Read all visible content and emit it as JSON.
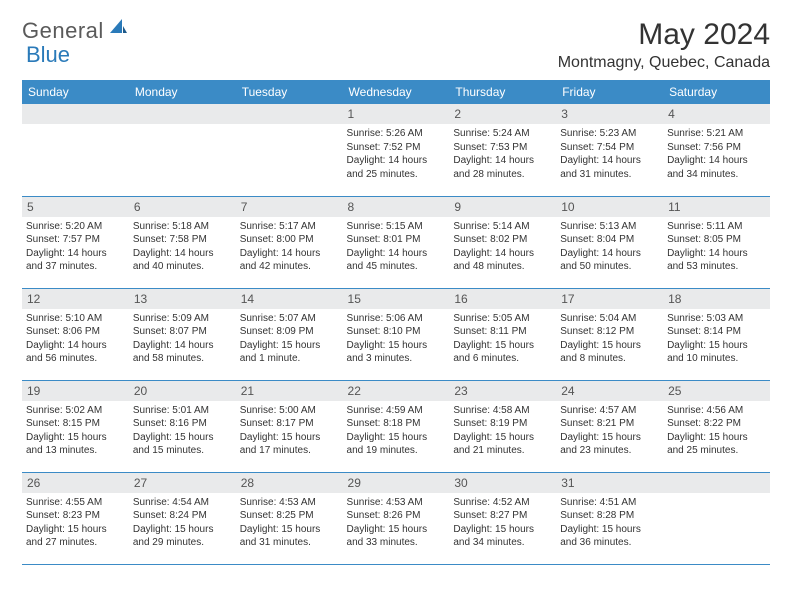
{
  "branding": {
    "logo_text_1": "General",
    "logo_text_2": "Blue",
    "logo_color_gray": "#5a5a5a",
    "logo_color_blue": "#2a7ab9"
  },
  "header": {
    "month_title": "May 2024",
    "location": "Montmagny, Quebec, Canada"
  },
  "styling": {
    "header_bg": "#3b8bc6",
    "header_text": "#ffffff",
    "daynum_bg": "#e9eaeb",
    "row_border": "#3b8bc6",
    "body_font_size": 10,
    "header_font_size": 12,
    "title_font_size": 30,
    "location_font_size": 16
  },
  "day_headers": [
    "Sunday",
    "Monday",
    "Tuesday",
    "Wednesday",
    "Thursday",
    "Friday",
    "Saturday"
  ],
  "weeks": [
    [
      null,
      null,
      null,
      {
        "n": "1",
        "sr": "Sunrise: 5:26 AM",
        "ss": "Sunset: 7:52 PM",
        "dl": "Daylight: 14 hours and 25 minutes."
      },
      {
        "n": "2",
        "sr": "Sunrise: 5:24 AM",
        "ss": "Sunset: 7:53 PM",
        "dl": "Daylight: 14 hours and 28 minutes."
      },
      {
        "n": "3",
        "sr": "Sunrise: 5:23 AM",
        "ss": "Sunset: 7:54 PM",
        "dl": "Daylight: 14 hours and 31 minutes."
      },
      {
        "n": "4",
        "sr": "Sunrise: 5:21 AM",
        "ss": "Sunset: 7:56 PM",
        "dl": "Daylight: 14 hours and 34 minutes."
      }
    ],
    [
      {
        "n": "5",
        "sr": "Sunrise: 5:20 AM",
        "ss": "Sunset: 7:57 PM",
        "dl": "Daylight: 14 hours and 37 minutes."
      },
      {
        "n": "6",
        "sr": "Sunrise: 5:18 AM",
        "ss": "Sunset: 7:58 PM",
        "dl": "Daylight: 14 hours and 40 minutes."
      },
      {
        "n": "7",
        "sr": "Sunrise: 5:17 AM",
        "ss": "Sunset: 8:00 PM",
        "dl": "Daylight: 14 hours and 42 minutes."
      },
      {
        "n": "8",
        "sr": "Sunrise: 5:15 AM",
        "ss": "Sunset: 8:01 PM",
        "dl": "Daylight: 14 hours and 45 minutes."
      },
      {
        "n": "9",
        "sr": "Sunrise: 5:14 AM",
        "ss": "Sunset: 8:02 PM",
        "dl": "Daylight: 14 hours and 48 minutes."
      },
      {
        "n": "10",
        "sr": "Sunrise: 5:13 AM",
        "ss": "Sunset: 8:04 PM",
        "dl": "Daylight: 14 hours and 50 minutes."
      },
      {
        "n": "11",
        "sr": "Sunrise: 5:11 AM",
        "ss": "Sunset: 8:05 PM",
        "dl": "Daylight: 14 hours and 53 minutes."
      }
    ],
    [
      {
        "n": "12",
        "sr": "Sunrise: 5:10 AM",
        "ss": "Sunset: 8:06 PM",
        "dl": "Daylight: 14 hours and 56 minutes."
      },
      {
        "n": "13",
        "sr": "Sunrise: 5:09 AM",
        "ss": "Sunset: 8:07 PM",
        "dl": "Daylight: 14 hours and 58 minutes."
      },
      {
        "n": "14",
        "sr": "Sunrise: 5:07 AM",
        "ss": "Sunset: 8:09 PM",
        "dl": "Daylight: 15 hours and 1 minute."
      },
      {
        "n": "15",
        "sr": "Sunrise: 5:06 AM",
        "ss": "Sunset: 8:10 PM",
        "dl": "Daylight: 15 hours and 3 minutes."
      },
      {
        "n": "16",
        "sr": "Sunrise: 5:05 AM",
        "ss": "Sunset: 8:11 PM",
        "dl": "Daylight: 15 hours and 6 minutes."
      },
      {
        "n": "17",
        "sr": "Sunrise: 5:04 AM",
        "ss": "Sunset: 8:12 PM",
        "dl": "Daylight: 15 hours and 8 minutes."
      },
      {
        "n": "18",
        "sr": "Sunrise: 5:03 AM",
        "ss": "Sunset: 8:14 PM",
        "dl": "Daylight: 15 hours and 10 minutes."
      }
    ],
    [
      {
        "n": "19",
        "sr": "Sunrise: 5:02 AM",
        "ss": "Sunset: 8:15 PM",
        "dl": "Daylight: 15 hours and 13 minutes."
      },
      {
        "n": "20",
        "sr": "Sunrise: 5:01 AM",
        "ss": "Sunset: 8:16 PM",
        "dl": "Daylight: 15 hours and 15 minutes."
      },
      {
        "n": "21",
        "sr": "Sunrise: 5:00 AM",
        "ss": "Sunset: 8:17 PM",
        "dl": "Daylight: 15 hours and 17 minutes."
      },
      {
        "n": "22",
        "sr": "Sunrise: 4:59 AM",
        "ss": "Sunset: 8:18 PM",
        "dl": "Daylight: 15 hours and 19 minutes."
      },
      {
        "n": "23",
        "sr": "Sunrise: 4:58 AM",
        "ss": "Sunset: 8:19 PM",
        "dl": "Daylight: 15 hours and 21 minutes."
      },
      {
        "n": "24",
        "sr": "Sunrise: 4:57 AM",
        "ss": "Sunset: 8:21 PM",
        "dl": "Daylight: 15 hours and 23 minutes."
      },
      {
        "n": "25",
        "sr": "Sunrise: 4:56 AM",
        "ss": "Sunset: 8:22 PM",
        "dl": "Daylight: 15 hours and 25 minutes."
      }
    ],
    [
      {
        "n": "26",
        "sr": "Sunrise: 4:55 AM",
        "ss": "Sunset: 8:23 PM",
        "dl": "Daylight: 15 hours and 27 minutes."
      },
      {
        "n": "27",
        "sr": "Sunrise: 4:54 AM",
        "ss": "Sunset: 8:24 PM",
        "dl": "Daylight: 15 hours and 29 minutes."
      },
      {
        "n": "28",
        "sr": "Sunrise: 4:53 AM",
        "ss": "Sunset: 8:25 PM",
        "dl": "Daylight: 15 hours and 31 minutes."
      },
      {
        "n": "29",
        "sr": "Sunrise: 4:53 AM",
        "ss": "Sunset: 8:26 PM",
        "dl": "Daylight: 15 hours and 33 minutes."
      },
      {
        "n": "30",
        "sr": "Sunrise: 4:52 AM",
        "ss": "Sunset: 8:27 PM",
        "dl": "Daylight: 15 hours and 34 minutes."
      },
      {
        "n": "31",
        "sr": "Sunrise: 4:51 AM",
        "ss": "Sunset: 8:28 PM",
        "dl": "Daylight: 15 hours and 36 minutes."
      },
      null
    ]
  ]
}
